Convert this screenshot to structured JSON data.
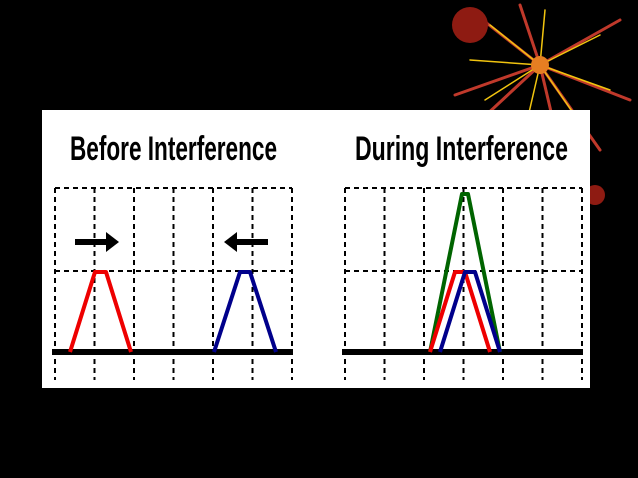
{
  "panels": [
    {
      "title": "Before Interference"
    },
    {
      "title": "During Interference"
    }
  ]
}
